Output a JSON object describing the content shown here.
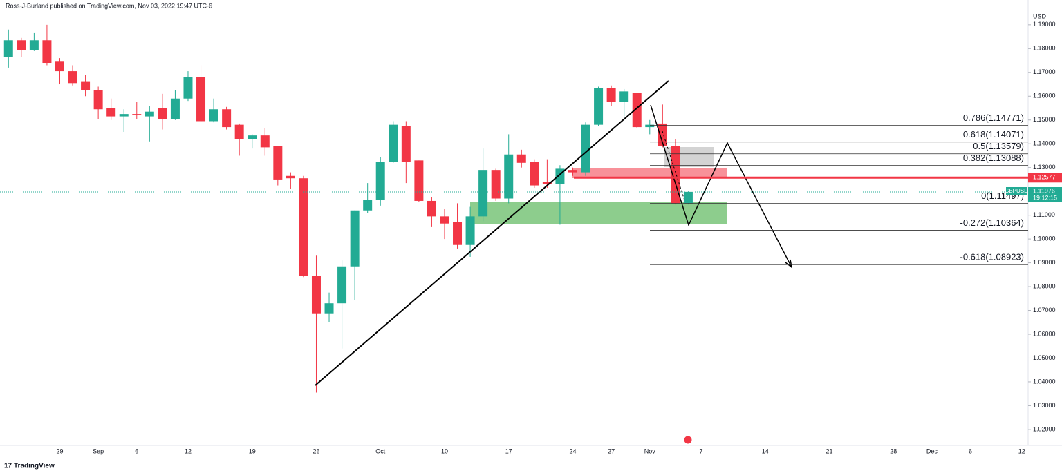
{
  "header": {
    "publisher": "Ross-J-Burland published on TradingView.com, Nov 03, 2022 19:47 UTC-6",
    "currency": "USD",
    "brand": "TradingView"
  },
  "chart_data": {
    "type": "candlestick",
    "categories": [
      null,
      null,
      null,
      null,
      "29",
      null,
      null,
      "Sep",
      null,
      null,
      "6",
      null,
      null,
      null,
      "12",
      null,
      null,
      null,
      null,
      "19",
      null,
      null,
      null,
      null,
      "26",
      null,
      null,
      null,
      null,
      "Oct",
      null,
      null,
      null,
      null,
      "10",
      null,
      null,
      null,
      null,
      "17",
      null,
      null,
      null,
      null,
      "24",
      null,
      null,
      "27",
      null,
      null,
      "Nov",
      null,
      null,
      null,
      "7",
      null,
      null,
      null,
      null,
      "14",
      null,
      null,
      null,
      null,
      "21",
      null,
      null,
      null,
      null,
      "28",
      null,
      null,
      "Dec",
      null,
      null,
      "6",
      null,
      null,
      null,
      "12"
    ],
    "open": [
      1.1765,
      1.1835,
      1.1795,
      1.1835,
      1.1745,
      1.1705,
      1.166,
      1.1625,
      1.155,
      1.1515,
      1.1525,
      1.1515,
      1.155,
      1.1505,
      1.159,
      1.168,
      1.1495,
      1.1545,
      1.148,
      1.142,
      1.1435,
      1.139,
      1.1265,
      1.1255,
      1.0845,
      1.0685,
      1.073,
      1.0885,
      1.112,
      1.1165,
      1.1325,
      1.1475,
      1.133,
      1.116,
      1.1095,
      1.107,
      1.0975,
      1.1095,
      1.129,
      1.117,
      1.1355,
      1.1325,
      1.124,
      1.123,
      1.129,
      1.128,
      1.148,
      1.1635,
      1.1575,
      1.1615,
      1.147,
      1.1485,
      1.139,
      1.115,
      null,
      null,
      null,
      null,
      null,
      null,
      null,
      null,
      null,
      null,
      null,
      null,
      null,
      null,
      null,
      null,
      null,
      null,
      null,
      null,
      null,
      null,
      null,
      null,
      null,
      null
    ],
    "high": [
      1.188,
      1.1845,
      1.1865,
      1.19,
      1.176,
      1.173,
      1.169,
      1.164,
      1.159,
      1.1545,
      1.1575,
      1.156,
      1.161,
      1.1625,
      1.1705,
      1.173,
      1.159,
      1.1555,
      1.1485,
      1.144,
      1.1465,
      1.139,
      1.128,
      1.1265,
      1.093,
      1.0775,
      1.091,
      1.112,
      1.1235,
      1.1345,
      1.1495,
      1.1495,
      1.133,
      1.1175,
      1.1125,
      1.115,
      1.1135,
      1.138,
      1.1295,
      1.144,
      1.1375,
      1.1335,
      1.1335,
      1.131,
      1.13,
      1.149,
      1.164,
      1.1645,
      1.163,
      1.1615,
      1.15,
      1.1565,
      1.142,
      1.12,
      null,
      null,
      null,
      null,
      null,
      null,
      null,
      null,
      null,
      null,
      null,
      null,
      null,
      null,
      null,
      null,
      null,
      null,
      null,
      null,
      null,
      null,
      null,
      null,
      null,
      null
    ],
    "low": [
      1.172,
      1.1765,
      1.179,
      1.173,
      1.165,
      1.1645,
      1.16,
      1.1505,
      1.15,
      1.145,
      1.1505,
      1.141,
      1.146,
      1.15,
      1.158,
      1.149,
      1.149,
      1.146,
      1.135,
      1.138,
      1.135,
      1.1225,
      1.121,
      1.084,
      1.0355,
      1.065,
      1.054,
      1.0745,
      1.111,
      1.114,
      1.132,
      1.1235,
      1.1155,
      1.105,
      1.1,
      1.096,
      1.0925,
      1.1075,
      1.116,
      1.115,
      1.13,
      1.1215,
      1.1215,
      1.106,
      1.1265,
      1.1265,
      1.1475,
      1.156,
      1.1515,
      1.1465,
      1.144,
      1.1385,
      1.1145,
      1.1145,
      null,
      null,
      null,
      null,
      null,
      null,
      null,
      null,
      null,
      null,
      null,
      null,
      null,
      null,
      null,
      null,
      null,
      null,
      null,
      null,
      null,
      null,
      null,
      null,
      null,
      null
    ],
    "close": [
      1.1835,
      1.1795,
      1.1835,
      1.174,
      1.1705,
      1.1655,
      1.1625,
      1.1545,
      1.1515,
      1.1525,
      1.152,
      1.1535,
      1.1505,
      1.159,
      1.168,
      1.1495,
      1.1545,
      1.147,
      1.142,
      1.1435,
      1.1385,
      1.125,
      1.1255,
      1.0845,
      1.0685,
      1.073,
      1.0885,
      1.112,
      1.1165,
      1.1325,
      1.148,
      1.1325,
      1.116,
      1.1095,
      1.1065,
      1.0975,
      1.1095,
      1.129,
      1.117,
      1.1355,
      1.132,
      1.1225,
      1.123,
      1.1295,
      1.128,
      1.148,
      1.1635,
      1.1575,
      1.162,
      1.147,
      1.148,
      1.139,
      1.115,
      1.1198,
      null,
      null,
      null,
      null,
      null,
      null,
      null,
      null,
      null,
      null,
      null,
      null,
      null,
      null,
      null,
      null,
      null,
      null,
      null,
      null,
      null,
      null,
      null,
      null,
      null,
      null
    ],
    "up_color": "#22ab94",
    "down_color": "#f23645",
    "ylim": [
      1.0133,
      1.1975
    ],
    "yticks": [
      {
        "value": 1.19,
        "label": "1.19000"
      },
      {
        "value": 1.18,
        "label": "1.18000"
      },
      {
        "value": 1.17,
        "label": "1.17000"
      },
      {
        "value": 1.16,
        "label": "1.16000"
      },
      {
        "value": 1.15,
        "label": "1.15000"
      },
      {
        "value": 1.14,
        "label": "1.14000"
      },
      {
        "value": 1.13,
        "label": "1.13000"
      },
      {
        "value": 1.12,
        "label": "1.12000"
      },
      {
        "value": 1.11,
        "label": "1.11000"
      },
      {
        "value": 1.1,
        "label": "1.10000"
      },
      {
        "value": 1.09,
        "label": "1.09000"
      },
      {
        "value": 1.08,
        "label": "1.08000"
      },
      {
        "value": 1.07,
        "label": "1.07000"
      },
      {
        "value": 1.06,
        "label": "1.06000"
      },
      {
        "value": 1.05,
        "label": "1.05000"
      },
      {
        "value": 1.04,
        "label": "1.04000"
      },
      {
        "value": 1.03,
        "label": "1.03000"
      },
      {
        "value": 1.02,
        "label": "1.02000"
      }
    ],
    "grid": false,
    "fib_levels": [
      {
        "label": "0.786(1.14771)",
        "value": 1.14771
      },
      {
        "label": "0.618(1.14071)",
        "value": 1.14071
      },
      {
        "label": "0.5(1.13579)",
        "value": 1.13579
      },
      {
        "label": "0.382(1.13088)",
        "value": 1.13088
      },
      {
        "label": "0(1.11497)",
        "value": 1.11497
      },
      {
        "label": "-0.272(1.10364)",
        "value": 1.10364
      },
      {
        "label": "-0.618(1.08923)",
        "value": 1.08923
      }
    ],
    "horizontal_line": {
      "value": 1.12577,
      "label": "1.12577",
      "color": "#f23645"
    },
    "last_price": {
      "symbol": "GBPUSD",
      "value": 1.11976,
      "label": "1.11976",
      "countdown": "19:12:15",
      "color": "#22ab94"
    }
  }
}
